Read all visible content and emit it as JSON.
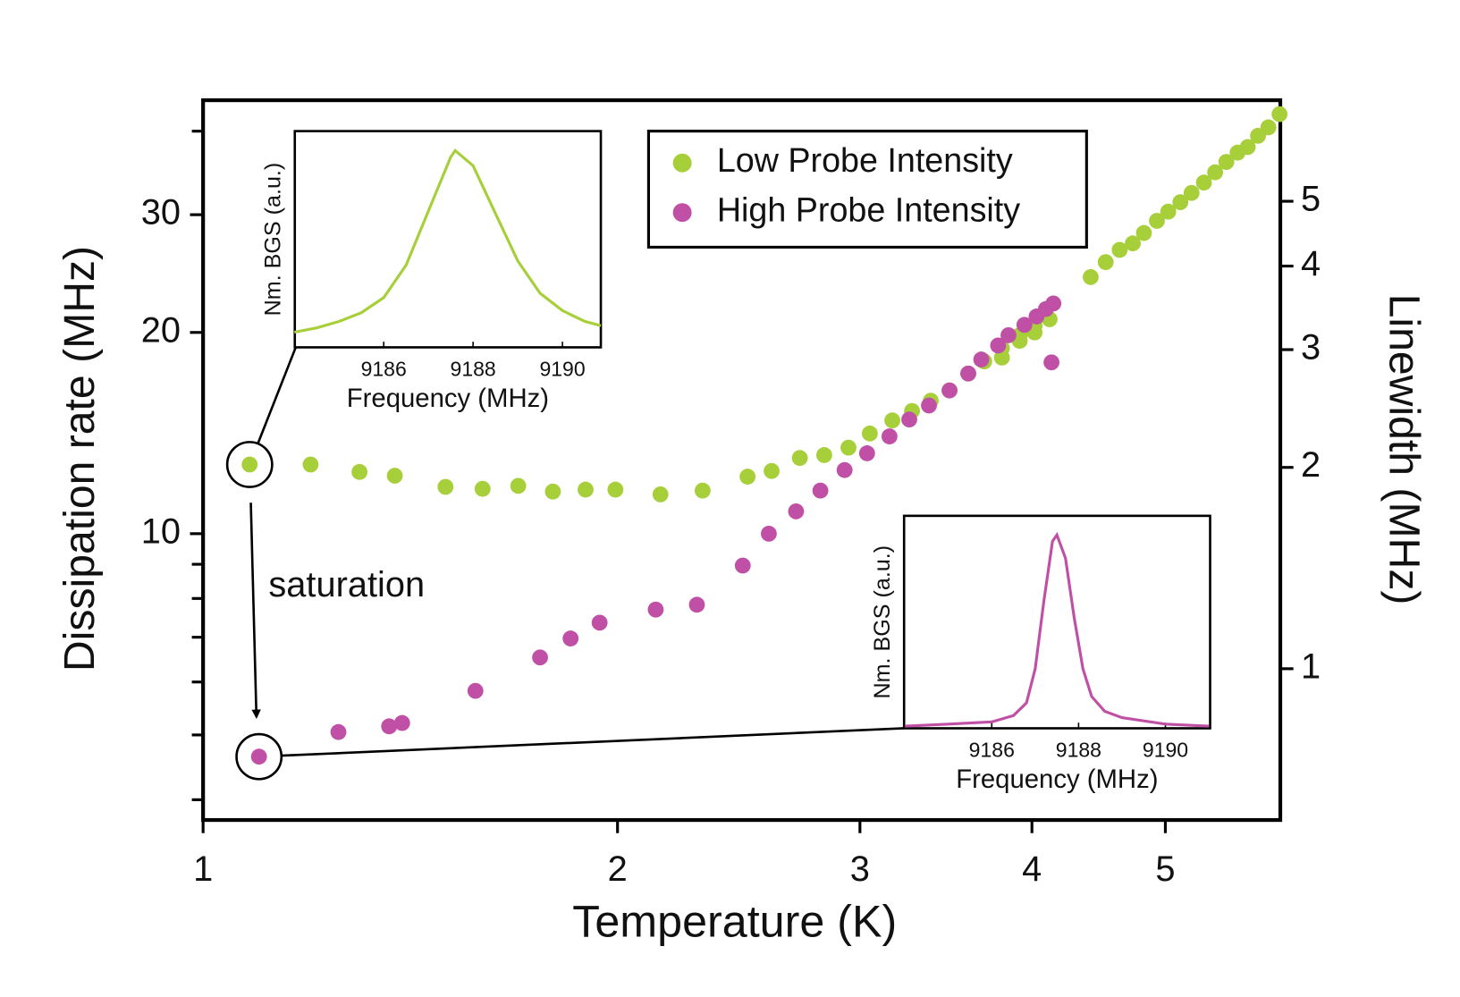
{
  "chart_data": [
    {
      "type": "scatter",
      "xlabel": "Temperature (K)",
      "ylabel": "Dissipation rate (MHz)",
      "y2label": "Linewidth (MHz)",
      "xscale": "log",
      "yscale": "log",
      "xlim": [
        1,
        6.06
      ],
      "xticks": [
        1,
        2,
        3,
        4,
        5
      ],
      "ylim": [
        3.73,
        44.5
      ],
      "yticks": [
        10,
        20,
        30
      ],
      "yminorticks": [
        4,
        5,
        6,
        7,
        8,
        9,
        40
      ],
      "y2lim": [
        0.594,
        7.08
      ],
      "y2ticks": [
        1,
        2,
        3,
        4,
        5
      ],
      "legend": "upper center",
      "annotation": "saturation",
      "series": [
        {
          "name": "Low Probe Intensity",
          "color": "#a6cf3a",
          "x": [
            1.081,
            1.197,
            1.299,
            1.378,
            1.5,
            1.596,
            1.694,
            1.795,
            1.896,
            1.993,
            2.149,
            2.306,
            2.486,
            2.588,
            2.713,
            2.826,
            2.943,
            3.05,
            3.167,
            3.273,
            3.377,
            3.485,
            3.596,
            3.693,
            3.804,
            3.804,
            3.919,
            3.919,
            4.018,
            4.018,
            4.12,
            4.413,
            4.525,
            4.632,
            4.735,
            4.824,
            4.93,
            5.024,
            5.127,
            5.224,
            5.333,
            5.434,
            5.537,
            5.642,
            5.739,
            5.838,
            5.94,
            6.052
          ],
          "values": [
            12.69,
            12.69,
            12.37,
            12.21,
            11.75,
            11.67,
            11.79,
            11.56,
            11.64,
            11.64,
            11.45,
            11.6,
            12.17,
            12.41,
            12.98,
            13.11,
            13.45,
            14.12,
            14.77,
            15.26,
            15.81,
            16.38,
            17.36,
            18.1,
            18.94,
            18.34,
            19.43,
            19.81,
            20.0,
            20.46,
            20.93,
            24.2,
            25.48,
            26.58,
            27.18,
            28.17,
            29.37,
            30.32,
            31.32,
            32.34,
            33.51,
            34.72,
            35.98,
            37.15,
            37.88,
            39.37,
            40.53,
            42.42
          ]
        },
        {
          "name": "High Probe Intensity",
          "color": "#c050a5",
          "x": [
            1.098,
            1.254,
            1.365,
            1.395,
            1.577,
            1.757,
            1.849,
            1.941,
            2.132,
            2.284,
            2.466,
            2.576,
            2.696,
            2.808,
            2.924,
            3.036,
            3.152,
            3.258,
            3.367,
            3.485,
            3.596,
            3.675,
            3.78,
            3.846,
            3.95,
            4.031,
            4.095,
            4.146,
            4.133
          ],
          "values": [
            4.64,
            5.05,
            5.15,
            5.21,
            5.82,
            6.53,
            6.97,
            7.36,
            7.7,
            7.83,
            8.96,
            10.0,
            10.8,
            11.6,
            12.45,
            13.19,
            13.98,
            14.82,
            15.55,
            16.38,
            17.36,
            18.22,
            19.12,
            19.81,
            20.53,
            21.13,
            21.68,
            22.1,
            18.04
          ]
        }
      ]
    },
    {
      "type": "line",
      "xlabel": "Frequency (MHz)",
      "ylabel": "Nm. BGS (a.u.)",
      "color": "#a6cf3a",
      "xlim": [
        9184.01,
        9190.86
      ],
      "xticks": [
        9186,
        9188,
        9190
      ],
      "ylim": [
        0,
        1
      ],
      "x": [
        9184.0,
        9184.5,
        9185.0,
        9185.5,
        9186.0,
        9186.5,
        9187.0,
        9187.5,
        9187.6,
        9188.0,
        9188.5,
        9189.0,
        9189.5,
        9190.0,
        9190.5,
        9190.86
      ],
      "values": [
        0.07,
        0.09,
        0.12,
        0.16,
        0.23,
        0.38,
        0.63,
        0.88,
        0.91,
        0.84,
        0.62,
        0.4,
        0.25,
        0.17,
        0.12,
        0.1
      ]
    },
    {
      "type": "line",
      "xlabel": "Frequency (MHz)",
      "ylabel": "Nm. BGS (a.u.)",
      "color": "#c050a5",
      "xlim": [
        9183.98,
        9191.03
      ],
      "xticks": [
        9186,
        9188,
        9190
      ],
      "ylim": [
        0,
        1
      ],
      "x": [
        9184.0,
        9185.0,
        9186.0,
        9186.5,
        9186.8,
        9187.0,
        9187.2,
        9187.4,
        9187.5,
        9187.7,
        9187.9,
        9188.1,
        9188.3,
        9188.6,
        9189.0,
        9190.0,
        9191.0
      ],
      "values": [
        0.01,
        0.02,
        0.03,
        0.06,
        0.12,
        0.28,
        0.6,
        0.88,
        0.91,
        0.8,
        0.52,
        0.28,
        0.15,
        0.08,
        0.05,
        0.02,
        0.01
      ]
    }
  ]
}
